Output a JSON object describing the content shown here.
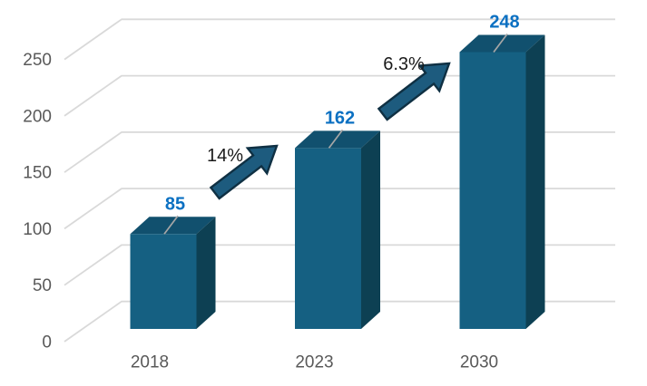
{
  "chart_data": {
    "type": "bar",
    "projection": "3d",
    "title": "",
    "categories": [
      "2018",
      "2023",
      "2030"
    ],
    "values": [
      85,
      162,
      248
    ],
    "value_labels": [
      "85",
      "162",
      "248"
    ],
    "yticks": [
      0,
      50,
      100,
      150,
      200,
      250
    ],
    "ylim": [
      0,
      250
    ],
    "grid": true,
    "legend": false,
    "xlabel": "",
    "ylabel": "",
    "annotations": [
      {
        "label": "14%",
        "text_x": 248,
        "text_y": 171,
        "arrow_from": [
          237,
          213
        ],
        "arrow_to": [
          305,
          161
        ]
      },
      {
        "label": "6.3%",
        "text_x": 445,
        "text_y": 70,
        "arrow_from": [
          422,
          126
        ],
        "arrow_to": [
          495,
          70
        ]
      }
    ],
    "colors": {
      "bar_front": "#156082",
      "bar_top": "#11506E",
      "bar_side": "#0D4053",
      "value_label": "#0B70C2",
      "axis_text": "#595959",
      "gridline": "#D9D9D9",
      "leader_line": "#A6A6A6",
      "arrow_fill": "#1D5B7E",
      "arrow_stroke": "#0F3043",
      "annotation_text": "#1A1A1A",
      "background": "#FFFFFF"
    }
  }
}
